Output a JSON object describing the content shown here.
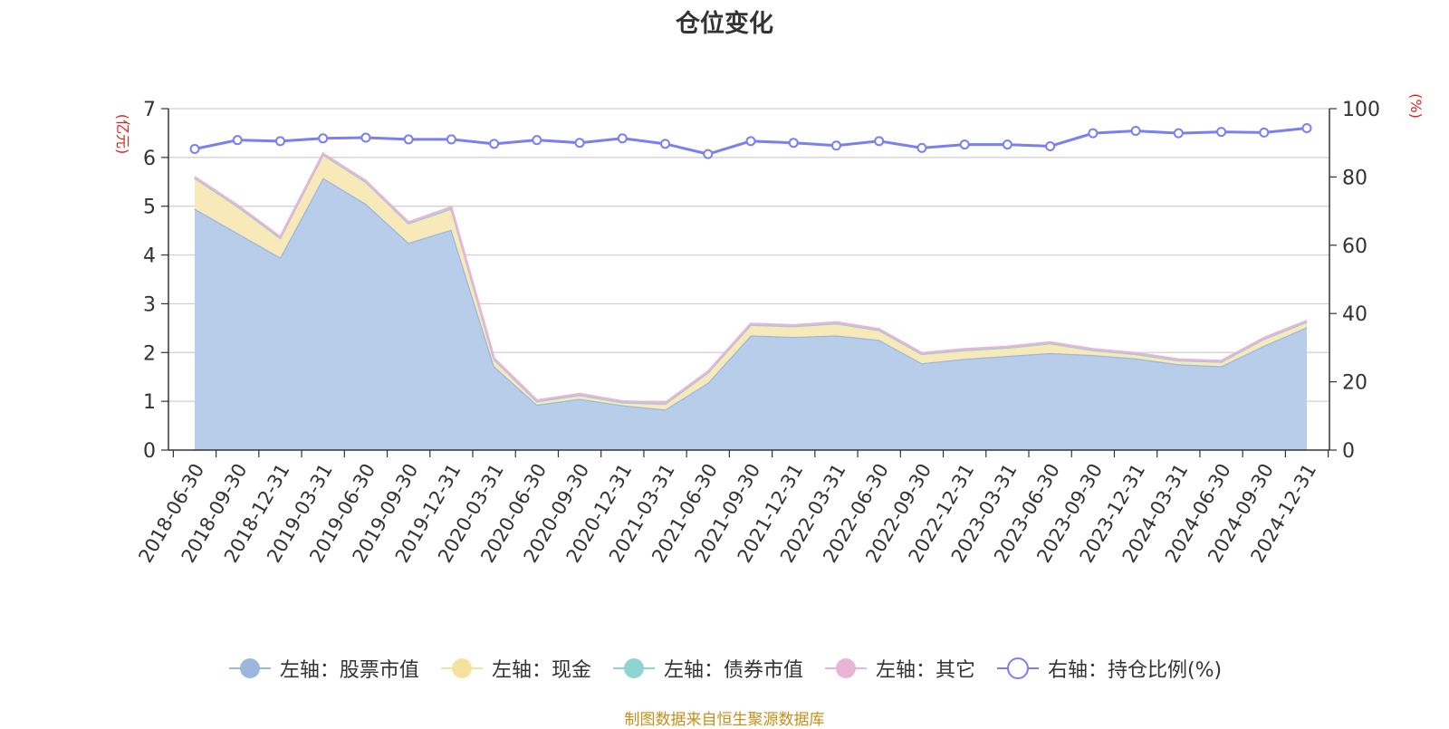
{
  "chart_data": {
    "type": "area",
    "title": "仓位变化",
    "y_left_label": "(亿元)",
    "y_right_label": "(%)",
    "y_left_range": [
      0,
      7
    ],
    "y_left_ticks": [
      0,
      1,
      2,
      3,
      4,
      5,
      6,
      7
    ],
    "y_right_range": [
      0,
      100
    ],
    "y_right_ticks": [
      0,
      20,
      40,
      60,
      80,
      100
    ],
    "grid": true,
    "legend_position": "bottom",
    "categories": [
      "2018-06-30",
      "2018-09-30",
      "2018-12-31",
      "2019-03-31",
      "2019-06-30",
      "2019-09-30",
      "2019-12-31",
      "2020-03-31",
      "2020-06-30",
      "2020-09-30",
      "2020-12-31",
      "2021-03-31",
      "2021-06-30",
      "2021-09-30",
      "2021-12-31",
      "2022-03-31",
      "2022-06-30",
      "2022-09-30",
      "2022-12-31",
      "2023-03-31",
      "2023-06-30",
      "2023-09-30",
      "2023-12-31",
      "2024-03-31",
      "2024-06-30",
      "2024-09-30",
      "2024-12-31"
    ],
    "series": [
      {
        "name": "左轴：股票市值",
        "axis": "left",
        "stacked": true,
        "color": "#9bb7e0",
        "fill": "#b7cdea",
        "values": [
          4.95,
          4.45,
          3.95,
          5.58,
          5.05,
          4.25,
          4.52,
          1.72,
          0.93,
          1.05,
          0.92,
          0.83,
          1.38,
          2.35,
          2.32,
          2.35,
          2.26,
          1.78,
          1.87,
          1.93,
          1.99,
          1.95,
          1.88,
          1.76,
          1.72,
          2.14,
          2.52
        ]
      },
      {
        "name": "左轴：现金",
        "axis": "left",
        "stacked": true,
        "color": "#f5e2a0",
        "fill": "#f8eab8",
        "values": [
          0.63,
          0.55,
          0.4,
          0.48,
          0.45,
          0.4,
          0.43,
          0.14,
          0.07,
          0.08,
          0.06,
          0.12,
          0.21,
          0.22,
          0.22,
          0.25,
          0.2,
          0.19,
          0.18,
          0.17,
          0.2,
          0.1,
          0.09,
          0.08,
          0.09,
          0.14,
          0.11
        ]
      },
      {
        "name": "左轴：债券市值",
        "axis": "left",
        "stacked": true,
        "color": "#8fd3d3",
        "fill": "#a6dcdc",
        "values": [
          0,
          0,
          0,
          0,
          0,
          0,
          0,
          0,
          0,
          0,
          0,
          0,
          0,
          0,
          0,
          0,
          0,
          0,
          0,
          0,
          0,
          0,
          0,
          0,
          0,
          0,
          0
        ]
      },
      {
        "name": "左轴：其它",
        "axis": "left",
        "stacked": true,
        "color": "#e8b4d8",
        "fill": "#f0c8e2",
        "values": [
          0.02,
          0.02,
          0.02,
          0.02,
          0.02,
          0.02,
          0.03,
          0.02,
          0.02,
          0.02,
          0.02,
          0.02,
          0.02,
          0.02,
          0.02,
          0.02,
          0.02,
          0.02,
          0.02,
          0.02,
          0.02,
          0.02,
          0.02,
          0.02,
          0.02,
          0.02,
          0.02
        ]
      },
      {
        "name": "右轴：持仓比例(%)",
        "axis": "right",
        "color": "#7b7ff0",
        "values": [
          88.2,
          90.8,
          90.5,
          91.3,
          91.5,
          91.0,
          91.0,
          89.7,
          90.8,
          90.0,
          91.3,
          89.7,
          86.7,
          90.5,
          90.0,
          89.2,
          90.5,
          88.5,
          89.5,
          89.5,
          89.0,
          92.8,
          93.5,
          92.8,
          93.2,
          93.0,
          94.3
        ]
      }
    ]
  },
  "source_note": "制图数据来自恒生聚源数据库"
}
